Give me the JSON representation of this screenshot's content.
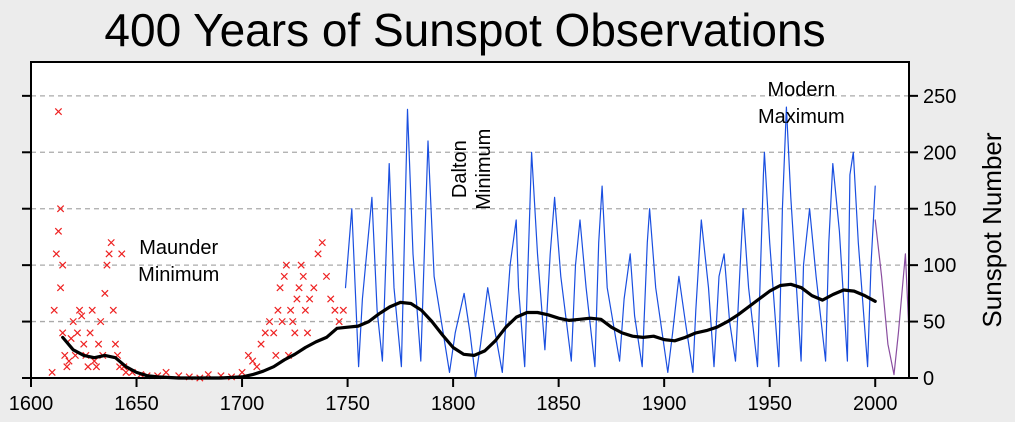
{
  "chart_data": {
    "type": "line",
    "title": "400 Years of Sunspot Observations",
    "xlabel": "",
    "ylabel": "Sunspot Number",
    "xlim": [
      1600,
      2016
    ],
    "ylim": [
      0,
      280
    ],
    "x_ticks": [
      1600,
      1650,
      1700,
      1750,
      1800,
      1850,
      1900,
      1950,
      2000
    ],
    "y_ticks": [
      0,
      50,
      100,
      150,
      200,
      250
    ],
    "grid": "horizontal dashed",
    "annotations": [
      {
        "lines": [
          "Maunder",
          "Minimum"
        ],
        "x": 1670,
        "y": 110
      },
      {
        "lines": [
          "Dalton",
          "Minimum"
        ],
        "x": 1810,
        "y": 185,
        "rotated": true
      },
      {
        "lines": [
          "Modern",
          "Maximum"
        ],
        "x": 1965,
        "y": 250
      }
    ],
    "series": [
      {
        "kind": "scatter",
        "color": "#ee2222",
        "x": [
          1610,
          1611,
          1612,
          1613,
          1613,
          1614,
          1614,
          1615,
          1615,
          1616,
          1617,
          1618,
          1619,
          1620,
          1621,
          1622,
          1623,
          1624,
          1625,
          1626,
          1627,
          1628,
          1629,
          1630,
          1631,
          1632,
          1633,
          1634,
          1635,
          1636,
          1637,
          1638,
          1639,
          1640,
          1641,
          1642,
          1643,
          1644,
          1645,
          1648,
          1652,
          1655,
          1660,
          1664,
          1670,
          1675,
          1680,
          1684,
          1690,
          1695,
          1700,
          1703,
          1705,
          1707,
          1709,
          1711,
          1713,
          1715,
          1716,
          1717,
          1718,
          1719,
          1720,
          1721,
          1722,
          1723,
          1724,
          1725,
          1726,
          1727,
          1728,
          1729,
          1730,
          1731,
          1732,
          1734,
          1736,
          1738,
          1740,
          1742,
          1744,
          1746,
          1748
        ],
        "y": [
          5,
          60,
          110,
          236,
          130,
          150,
          80,
          40,
          100,
          20,
          10,
          15,
          35,
          50,
          20,
          40,
          60,
          55,
          30,
          20,
          10,
          40,
          60,
          15,
          10,
          30,
          50,
          20,
          75,
          100,
          110,
          120,
          60,
          30,
          20,
          10,
          110,
          10,
          5,
          5,
          3,
          2,
          2,
          5,
          2,
          1,
          0,
          3,
          2,
          1,
          5,
          20,
          15,
          10,
          30,
          40,
          50,
          40,
          20,
          60,
          80,
          50,
          90,
          100,
          20,
          60,
          50,
          40,
          70,
          80,
          100,
          90,
          60,
          40,
          70,
          80,
          110,
          120,
          90,
          70,
          60,
          50,
          60
        ]
      },
      {
        "kind": "line",
        "color": "#1a4fe0",
        "x": [
          1749,
          1752,
          1755.2,
          1757,
          1761.5,
          1764,
          1766.5,
          1769.7,
          1772,
          1775.5,
          1778.4,
          1781,
          1784.7,
          1788.1,
          1791,
          1798.3,
          1801,
          1805.2,
          1808,
          1810.6,
          1813,
          1816.4,
          1819,
          1823.3,
          1827,
          1829.9,
          1831,
          1833.9,
          1836,
          1837.2,
          1840,
          1843.5,
          1846,
          1848.1,
          1851,
          1856,
          1858,
          1860.1,
          1863,
          1867.2,
          1869,
          1870.6,
          1873,
          1878.9,
          1881,
          1883.9,
          1886,
          1889.6,
          1892,
          1893.1,
          1896,
          1901.7,
          1904,
          1907,
          1910,
          1913.6,
          1915,
          1917.6,
          1921,
          1923.6,
          1926,
          1928.4,
          1931,
          1933.8,
          1936,
          1937.4,
          1940,
          1944.2,
          1947,
          1947.5,
          1950,
          1954.3,
          1956,
          1957.9,
          1960,
          1964.9,
          1966,
          1968.9,
          1972,
          1976.5,
          1978,
          1979.9,
          1983,
          1986.8,
          1988,
          1989.6,
          1992,
          1996.4,
          1998,
          2000
        ],
        "y": [
          80,
          150,
          10,
          70,
          160,
          60,
          15,
          190,
          80,
          10,
          238,
          110,
          15,
          210,
          90,
          5,
          40,
          75,
          40,
          0,
          30,
          80,
          50,
          5,
          100,
          140,
          80,
          10,
          130,
          200,
          110,
          25,
          110,
          160,
          90,
          15,
          100,
          140,
          80,
          10,
          120,
          170,
          80,
          15,
          70,
          110,
          55,
          10,
          120,
          150,
          80,
          5,
          40,
          90,
          50,
          5,
          60,
          140,
          80,
          10,
          90,
          110,
          50,
          15,
          100,
          150,
          80,
          10,
          180,
          200,
          120,
          10,
          150,
          240,
          160,
          15,
          100,
          150,
          90,
          15,
          120,
          190,
          130,
          15,
          180,
          200,
          120,
          10,
          100,
          170
        ]
      },
      {
        "kind": "line",
        "color": "#8a4ea0",
        "x": [
          2000,
          2003,
          2006,
          2008.9,
          2011,
          2014.3,
          2016
        ],
        "y": [
          140,
          90,
          30,
          3,
          40,
          110,
          40
        ]
      },
      {
        "kind": "line",
        "color": "#000000",
        "x": [
          1615,
          1620,
          1625,
          1630,
          1635,
          1640,
          1645,
          1650,
          1655,
          1660,
          1670,
          1680,
          1690,
          1700,
          1705,
          1710,
          1715,
          1720,
          1725,
          1730,
          1735,
          1740,
          1745,
          1750,
          1755,
          1760,
          1765,
          1770,
          1775,
          1780,
          1785,
          1790,
          1795,
          1800,
          1805,
          1810,
          1815,
          1820,
          1825,
          1830,
          1835,
          1840,
          1845,
          1850,
          1855,
          1860,
          1865,
          1870,
          1875,
          1880,
          1885,
          1890,
          1895,
          1900,
          1905,
          1910,
          1915,
          1920,
          1925,
          1930,
          1935,
          1940,
          1945,
          1950,
          1955,
          1960,
          1965,
          1970,
          1975,
          1980,
          1985,
          1990,
          1995,
          2000
        ],
        "y": [
          36,
          25,
          20,
          18,
          20,
          18,
          10,
          5,
          2,
          1,
          0,
          0,
          0,
          1,
          3,
          6,
          10,
          16,
          21,
          27,
          32,
          36,
          44,
          45,
          46,
          50,
          57,
          63,
          67,
          66,
          60,
          50,
          38,
          27,
          21,
          20,
          24,
          33,
          45,
          54,
          58,
          58,
          56,
          53,
          51,
          52,
          53,
          52,
          45,
          40,
          37,
          36,
          37,
          34,
          33,
          36,
          40,
          42,
          45,
          50,
          56,
          63,
          70,
          77,
          82,
          83,
          80,
          73,
          69,
          74,
          78,
          77,
          73,
          68
        ]
      }
    ]
  }
}
